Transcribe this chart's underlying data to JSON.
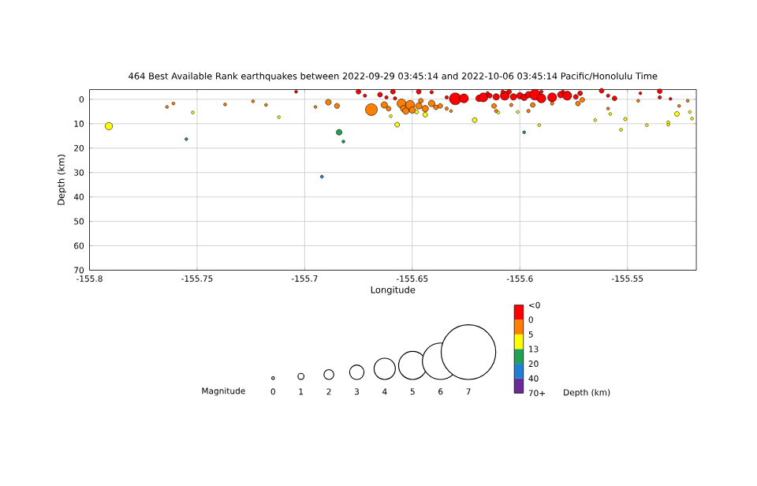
{
  "chart_data": {
    "type": "bubble",
    "title": "464 Best Available Rank earthquakes between 2022-09-29 03:45:14 and 2022-10-06 03:45:14 Pacific/Honolulu Time",
    "xlabel": "Longitude",
    "ylabel": "Depth (km)",
    "annotations": [
      "Magnitude",
      "0",
      "1",
      "2",
      "3",
      "4",
      "5",
      "6",
      "7",
      "<0",
      "0",
      "5",
      "13",
      "20",
      "40",
      "70+",
      "Depth (km)"
    ],
    "xlim": [
      -155.8,
      -155.518
    ],
    "xticks": [
      -155.8,
      -155.75,
      -155.7,
      -155.65,
      -155.6,
      -155.55
    ],
    "ylim": [
      70,
      -4
    ],
    "yticks": [
      0,
      10,
      20,
      30,
      40,
      50,
      60,
      70
    ],
    "grid": true,
    "marker": "circle",
    "x": [
      -155.791,
      -155.764,
      -155.761,
      -155.752,
      -155.755,
      -155.737,
      -155.724,
      -155.718,
      -155.712,
      -155.704,
      -155.695,
      -155.689,
      -155.685,
      -155.684,
      -155.682,
      -155.692,
      -155.675,
      -155.672,
      -155.669,
      -155.665,
      -155.662,
      -155.659,
      -155.658,
      -155.663,
      -155.661,
      -155.655,
      -155.654,
      -155.653,
      -155.651,
      -155.65,
      -155.647,
      -155.646,
      -155.644,
      -155.641,
      -155.639,
      -155.637,
      -155.634,
      -155.657,
      -155.644,
      -155.648,
      -155.66,
      -155.647,
      -155.641,
      -155.634,
      -155.63,
      -155.626,
      -155.632,
      -155.621,
      -155.619,
      -155.617,
      -155.614,
      -155.611,
      -155.607,
      -155.605,
      -155.603,
      -155.6,
      -155.598,
      -155.596,
      -155.593,
      -155.59,
      -155.585,
      -155.581,
      -155.578,
      -155.574,
      -155.572,
      -155.615,
      -155.608,
      -155.59,
      -155.58,
      -155.612,
      -155.611,
      -155.594,
      -155.596,
      -155.573,
      -155.571,
      -155.585,
      -155.604,
      -155.601,
      -155.61,
      -155.591,
      -155.598,
      -155.562,
      -155.559,
      -155.556,
      -155.559,
      -155.558,
      -155.565,
      -155.553,
      -155.551,
      -155.544,
      -155.545,
      -155.541,
      -155.535,
      -155.535,
      -155.53,
      -155.531,
      -155.531,
      -155.527,
      -155.526,
      -155.522,
      -155.521,
      -155.52
    ],
    "values": [
      11.0,
      3.1,
      1.7,
      5.4,
      16.3,
      2.1,
      0.8,
      2.3,
      7.3,
      -3.1,
      3.1,
      1.2,
      2.7,
      13.5,
      17.3,
      31.7,
      -3.1,
      -1.5,
      4.2,
      -1.9,
      -0.8,
      -3.1,
      -0.4,
      2.3,
      3.8,
      1.7,
      3.8,
      4.8,
      2.3,
      4.4,
      2.7,
      0.6,
      3.8,
      1.7,
      3.3,
      2.7,
      3.8,
      10.4,
      6.3,
      5.2,
      6.9,
      -3.1,
      -2.9,
      -0.8,
      -0.2,
      -0.4,
      4.8,
      8.5,
      -0.4,
      -0.8,
      -1.5,
      -1.0,
      -1.5,
      -3.1,
      -1.0,
      -1.5,
      -0.8,
      -1.9,
      -1.9,
      -0.4,
      -0.8,
      -1.9,
      -1.5,
      -1.0,
      -2.5,
      -2.5,
      -3.1,
      -3.1,
      -3.1,
      2.7,
      4.8,
      2.3,
      4.8,
      1.7,
      0.2,
      1.7,
      2.3,
      5.2,
      5.4,
      10.6,
      13.5,
      -3.5,
      -1.5,
      -0.4,
      3.8,
      6.0,
      8.5,
      12.5,
      8.1,
      -2.5,
      0.6,
      10.6,
      -3.3,
      -0.8,
      -0.2,
      10.4,
      9.4,
      6.0,
      2.7,
      0.6,
      5.2,
      7.9
    ],
    "sizes": [
      0.39,
      0.06,
      0.06,
      0.06,
      0.06,
      0.06,
      0.06,
      0.06,
      0.06,
      0.06,
      0.06,
      0.23,
      0.18,
      0.23,
      0.06,
      0.06,
      0.16,
      0.08,
      1,
      0.16,
      0.08,
      0.16,
      0.08,
      0.3,
      0.16,
      0.57,
      0.3,
      0.3,
      0.57,
      0.3,
      0.3,
      0.16,
      0.3,
      0.3,
      0.16,
      0.16,
      0.08,
      0.16,
      0.16,
      0.1,
      0.06,
      0.16,
      0.08,
      0.08,
      1,
      0.57,
      0.06,
      0.16,
      0.3,
      0.57,
      0.16,
      0.3,
      0.57,
      0.16,
      0.3,
      0.3,
      0.3,
      0.3,
      0.8,
      0.57,
      0.57,
      0.3,
      0.57,
      0.16,
      0.16,
      0.08,
      0.08,
      0.08,
      0.08,
      0.16,
      0.08,
      0.16,
      0.08,
      0.16,
      0.16,
      0.08,
      0.08,
      0.06,
      0.06,
      0.06,
      0.06,
      0.16,
      0.08,
      0.16,
      0.06,
      0.06,
      0.06,
      0.06,
      0.08,
      0.06,
      0.06,
      0.06,
      0.16,
      0.08,
      0.06,
      0.06,
      0.06,
      0.16,
      0.06,
      0.06,
      0.06,
      0.06
    ],
    "colors": [
      "#ffff00",
      "#ff7f00",
      "#ff7f00",
      "#ffff00",
      "#22a055",
      "#ff7f00",
      "#ff7f00",
      "#ff7f00",
      "#ffff00",
      "#ff0000",
      "#ff7f00",
      "#ff7f00",
      "#ff7f00",
      "#22a055",
      "#22a055",
      "#1f7fd4",
      "#ff0000",
      "#ff0000",
      "#ff7f00",
      "#ff0000",
      "#ff0000",
      "#ff0000",
      "#ff0000",
      "#ff7f00",
      "#ff7f00",
      "#ff7f00",
      "#ff7f00",
      "#ff7f00",
      "#ff7f00",
      "#ff7f00",
      "#ff7f00",
      "#ff7f00",
      "#ff7f00",
      "#ff7f00",
      "#ff7f00",
      "#ff7f00",
      "#ff7f00",
      "#ffff00",
      "#ffff00",
      "#ffff00",
      "#ffff00",
      "#ff0000",
      "#ff0000",
      "#ff0000",
      "#ff0000",
      "#ff0000",
      "#ff7f00",
      "#ffff00",
      "#ff0000",
      "#ff0000",
      "#ff0000",
      "#ff0000",
      "#ff0000",
      "#ff0000",
      "#ff0000",
      "#ff0000",
      "#ff0000",
      "#ff0000",
      "#ff0000",
      "#ff0000",
      "#ff0000",
      "#ff0000",
      "#ff0000",
      "#ff0000",
      "#ff0000",
      "#ff0000",
      "#ff0000",
      "#ff0000",
      "#ff0000",
      "#ff7f00",
      "#ff7f00",
      "#ff7f00",
      "#ff7f00",
      "#ff7f00",
      "#ff7f00",
      "#ff7f00",
      "#ff7f00",
      "#ffff00",
      "#ffff00",
      "#ffff00",
      "#22a055",
      "#ff0000",
      "#ff0000",
      "#ff0000",
      "#ff7f00",
      "#ffff00",
      "#ffff00",
      "#ffff00",
      "#ffff00",
      "#ff0000",
      "#ff7f00",
      "#ffff00",
      "#ff0000",
      "#ff0000",
      "#ff0000",
      "#ffff00",
      "#ffff00",
      "#ffff00",
      "#ff7f00",
      "#ff7f00",
      "#ffff00",
      "#ffff00"
    ]
  }
}
